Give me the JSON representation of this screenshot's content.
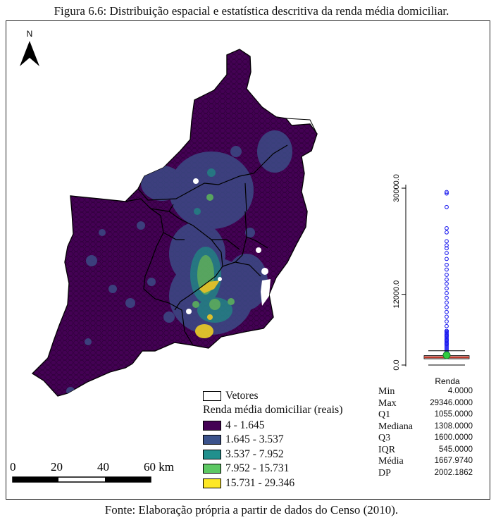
{
  "caption": "Figura 6.6: Distribuição espacial e estatística descritiva da renda média domiciliar.",
  "source_note": "Fonte: Elaboração própria a partir de dados do Censo (2010).",
  "north_arrow_label": "N",
  "legend": {
    "vectors_label": "Vetores",
    "title": "Renda média domiciliar (reais)",
    "classes": [
      {
        "label": "4 - 1.645",
        "color": "#440154"
      },
      {
        "label": "1.645 - 3.537",
        "color": "#3b528b"
      },
      {
        "label": "3.537 - 7.952",
        "color": "#21908d"
      },
      {
        "label": "7.952 - 15.731",
        "color": "#5dc863"
      },
      {
        "label": "15.731 - 29.346",
        "color": "#fde725"
      }
    ]
  },
  "scale_bar": {
    "ticks": [
      "0",
      "20",
      "40",
      "60 km"
    ]
  },
  "boxplot": {
    "variable_label": "Renda",
    "axis_ticks": [
      "0.0",
      "12000.0",
      "30000.0"
    ],
    "point_color": "#1010ee",
    "median_color": "#c0392b",
    "mean_color": "#2ecc40"
  },
  "chart_data": {
    "type": "box",
    "variable": "Renda",
    "yticks": [
      0,
      12000,
      30000
    ],
    "ylim": [
      0,
      31000
    ],
    "stats": {
      "min": 4.0,
      "q1": 1055.0,
      "median": 1308.0,
      "q3": 1600.0,
      "max": 29346.0,
      "mean": 1667.974,
      "iqr": 545.0,
      "sd": 2002.1862
    },
    "outliers": [
      29346,
      29100,
      26800,
      23200,
      22500,
      21000,
      20300,
      19800,
      19000,
      18000,
      17000,
      16200,
      15300,
      14500,
      13800,
      13000,
      12200,
      11400,
      10600,
      9800,
      9000,
      8200,
      7400,
      6600,
      5800,
      5000,
      4200,
      3600
    ]
  },
  "stats_table": [
    {
      "label": "Min",
      "value": "4.0000"
    },
    {
      "label": "Max",
      "value": "29346.0000"
    },
    {
      "label": "Q1",
      "value": "1055.0000"
    },
    {
      "label": "Mediana",
      "value": "1308.0000"
    },
    {
      "label": "Q3",
      "value": "1600.0000"
    },
    {
      "label": "IQR",
      "value": "545.0000"
    },
    {
      "label": "Média",
      "value": "1667.9740"
    },
    {
      "label": "DP",
      "value": "2002.1862"
    }
  ]
}
